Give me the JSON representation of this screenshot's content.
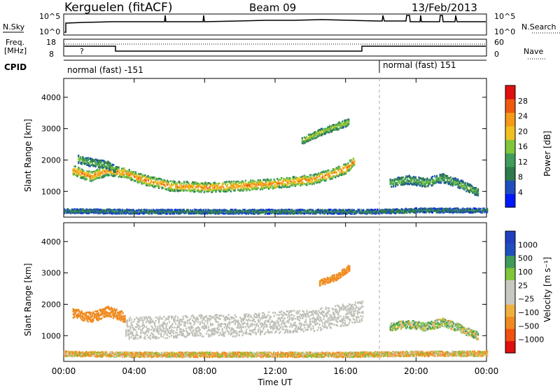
{
  "header": {
    "station": "Kerguelen (fitACF)",
    "beam": "Beam 09",
    "date": "13/Feb/2013"
  },
  "noise_panel": {
    "left_label": "N.Sky",
    "right_label": "N.Search",
    "left_ticks": [
      "10^5",
      "10^0"
    ],
    "right_ticks": [
      "10^5",
      "10^0"
    ]
  },
  "freq_panel": {
    "left_label_1": "Freq.",
    "left_label_2": "[MHz]",
    "right_label": "Nave",
    "left_ticks": [
      "18",
      "8"
    ],
    "right_ticks": [
      "60",
      "0"
    ],
    "marker": "?"
  },
  "cpid_panel": {
    "label": "CPID",
    "modes": [
      {
        "text": "normal (fast) -151",
        "start_hour": 0,
        "end_hour": 18
      },
      {
        "text": "normal (fast) 151",
        "start_hour": 18,
        "end_hour": 24
      }
    ]
  },
  "colors": {
    "power_scale": [
      "#0018ff",
      "#1f4fbf",
      "#2e7a4a",
      "#3f9c5a",
      "#7fc63a",
      "#f0c020",
      "#f59a18",
      "#f05a10",
      "#e01010"
    ],
    "velocity_scale": [
      "#e01010",
      "#f05010",
      "#f08a20",
      "#f0b040",
      "#c8c8c0",
      "#c8c8c0",
      "#7fc63a",
      "#3f9c5a",
      "#1f4fbf",
      "#2040c0"
    ],
    "ground_scatter": "#c0c0b8"
  },
  "chart_data": [
    {
      "type": "heatmap",
      "title": "Power",
      "xlabel": "",
      "ylabel": "Slant Range [km]",
      "x_unit": "Time UT (hours)",
      "xlim": [
        0,
        24
      ],
      "ylim": [
        180,
        4600
      ],
      "x_ticks": [
        0,
        4,
        8,
        12,
        16,
        20,
        24
      ],
      "y_ticks": [
        1000,
        2000,
        3000,
        4000
      ],
      "y_tick_labels": [
        "1000",
        "2000",
        "3000",
        "4000"
      ],
      "colorbar": {
        "label": "Power [dB]",
        "range": [
          0,
          32
        ],
        "ticks": [
          "4",
          "8",
          "12",
          "16",
          "20",
          "24",
          "28"
        ]
      },
      "bands": [
        {
          "name": "main",
          "x": [
            0.5,
            1.5,
            2.5,
            3.5,
            4.5,
            6,
            8,
            10,
            12,
            14,
            15,
            16,
            16.5
          ],
          "y": [
            1700,
            1500,
            1700,
            1600,
            1400,
            1200,
            1150,
            1200,
            1280,
            1400,
            1550,
            1750,
            2000
          ],
          "thickness": 320,
          "level": 24
        },
        {
          "name": "upper",
          "x": [
            0.8,
            1.5,
            2.5,
            3.0
          ],
          "y": [
            2050,
            1950,
            1850,
            1700
          ],
          "thickness": 260,
          "level": 14
        },
        {
          "name": "distant",
          "x": [
            13.5,
            14.5,
            15.5,
            16.2
          ],
          "y": [
            2650,
            2900,
            3100,
            3250
          ],
          "thickness": 220,
          "level": 18
        },
        {
          "name": "near",
          "x": [
            0,
            4,
            8,
            12,
            16,
            18,
            20,
            22,
            24
          ],
          "y": [
            400,
            380,
            380,
            380,
            380,
            380,
            420,
            420,
            420
          ],
          "thickness": 140,
          "level": 10
        },
        {
          "name": "evening",
          "x": [
            18.5,
            19.5,
            20.5,
            21.5,
            22.5,
            23.5
          ],
          "y": [
            1300,
            1400,
            1300,
            1450,
            1250,
            1000
          ],
          "thickness": 280,
          "level": 14
        }
      ]
    },
    {
      "type": "heatmap",
      "title": "Velocity",
      "xlabel": "Time UT",
      "ylabel": "Slant Range [km]",
      "x_unit": "Time UT (hours)",
      "xlim": [
        0,
        24
      ],
      "ylim": [
        180,
        4600
      ],
      "x_ticks": [
        0,
        4,
        8,
        12,
        16,
        20,
        24
      ],
      "x_tick_labels": [
        "00:00",
        "04:00",
        "08:00",
        "12:00",
        "16:00",
        "20:00",
        "00:00"
      ],
      "y_ticks": [
        1000,
        2000,
        3000,
        4000
      ],
      "y_tick_labels": [
        "1000",
        "2000",
        "3000",
        "4000"
      ],
      "colorbar": {
        "label": "Velocity [m s⁻¹]",
        "ticks": [
          "1000",
          "500",
          "100",
          "25",
          "−25",
          "−100",
          "−500",
          "−1000"
        ]
      },
      "bands": [
        {
          "name": "ionospheric-west",
          "x": [
            0.5,
            1.5,
            2.5,
            3.5
          ],
          "y": [
            1750,
            1600,
            1800,
            1600
          ],
          "thickness": 320,
          "velocity": -300
        },
        {
          "name": "ground-scatter",
          "x": [
            3.5,
            6,
            8,
            10,
            12,
            14,
            16,
            17
          ],
          "y": [
            1250,
            1300,
            1350,
            1350,
            1450,
            1500,
            1700,
            1800
          ],
          "thickness": 700,
          "velocity": 0
        },
        {
          "name": "distant",
          "x": [
            14.5,
            15.5,
            16.2
          ],
          "y": [
            2700,
            2900,
            3200
          ],
          "thickness": 200,
          "velocity": -200
        },
        {
          "name": "near",
          "x": [
            0,
            4,
            8,
            12,
            16,
            20,
            24
          ],
          "y": [
            450,
            420,
            420,
            420,
            420,
            450,
            450
          ],
          "thickness": 160,
          "velocity": -60
        },
        {
          "name": "evening",
          "x": [
            18.5,
            19.5,
            20.5,
            21.5,
            22.5,
            23.5
          ],
          "y": [
            1300,
            1400,
            1300,
            1450,
            1250,
            1000
          ],
          "thickness": 260,
          "velocity": 50
        }
      ]
    }
  ]
}
